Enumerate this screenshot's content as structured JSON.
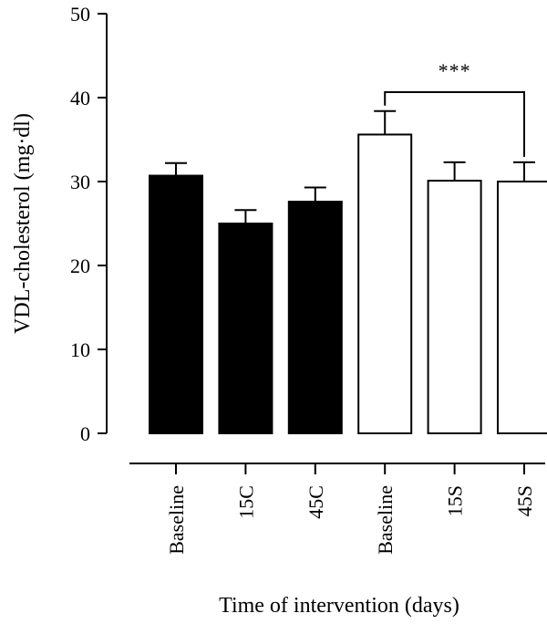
{
  "chart_data": {
    "type": "bar",
    "title": "",
    "xlabel": "Time of intervention (days)",
    "ylabel": "VDL-cholesterol (mg·dl)",
    "ylim": [
      0,
      50
    ],
    "yticks": [
      "0",
      "10",
      "20",
      "30",
      "40",
      "50"
    ],
    "categories": [
      "Baseline",
      "15C",
      "45C",
      "Baseline",
      "15S",
      "45S"
    ],
    "values": [
      30.7,
      25.0,
      27.6,
      35.6,
      30.1,
      30.0
    ],
    "errors": [
      1.5,
      1.6,
      1.7,
      2.8,
      2.2,
      2.3
    ],
    "bar_fills": [
      "#000000",
      "#000000",
      "#000000",
      "#ffffff",
      "#ffffff",
      "#ffffff"
    ],
    "grid": false,
    "significance": {
      "label": "***",
      "from_category_index": 3,
      "to_category_index": 5
    }
  }
}
